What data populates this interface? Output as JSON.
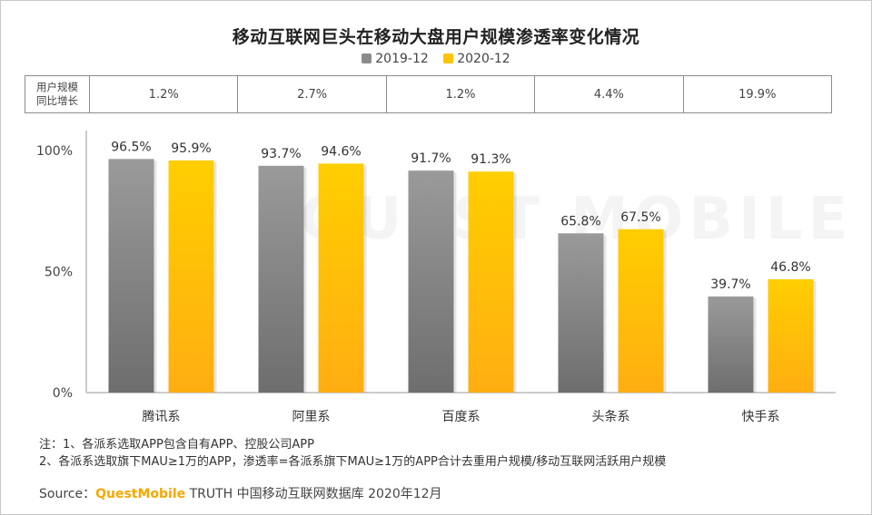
{
  "title": "移动互联网巨头在移动大盘用户规模渗透率变化情况",
  "growth_table": {
    "row_label_line1": "用户规模",
    "row_label_line2": "同比增长",
    "values": [
      "1.2%",
      "2.7%",
      "1.2%",
      "4.4%",
      "19.9%"
    ]
  },
  "chart_data": {
    "type": "bar",
    "title": "移动互联网巨头在移动大盘用户规模渗透率变化情况",
    "categories": [
      "腾讯系",
      "阿里系",
      "百度系",
      "头条系",
      "快手系"
    ],
    "series": [
      {
        "name": "2019-12",
        "values": [
          96.5,
          93.7,
          91.7,
          65.8,
          39.7
        ],
        "color": "#8c8c8c"
      },
      {
        "name": "2020-12",
        "values": [
          95.9,
          94.6,
          91.3,
          67.5,
          46.8
        ],
        "color": "#ffc400"
      }
    ],
    "data_labels": [
      [
        "96.5%",
        "93.7%",
        "91.7%",
        "65.8%",
        "39.7%"
      ],
      [
        "95.9%",
        "94.6%",
        "91.3%",
        "67.5%",
        "46.8%"
      ]
    ],
    "yticks": [
      0,
      50,
      100
    ],
    "ytick_labels": [
      "0%",
      "50%",
      "100%"
    ],
    "ylim": [
      0,
      100
    ],
    "legend_position": "top-center",
    "grid": false,
    "watermark": "QUEST MOBILE"
  },
  "notes": {
    "line1": "注：1、各派系选取APP包含自有APP、控股公司APP",
    "line2": "2、各派系选取旗下MAU≥1万的APP，渗透率=各派系旗下MAU≥1万的APP合计去重用户规模/移动互联网活跃用户规模"
  },
  "source": {
    "prefix": "Source：",
    "brand": "QuestMobile",
    "rest": " TRUTH 中国移动互联网数据库 2020年12月"
  }
}
